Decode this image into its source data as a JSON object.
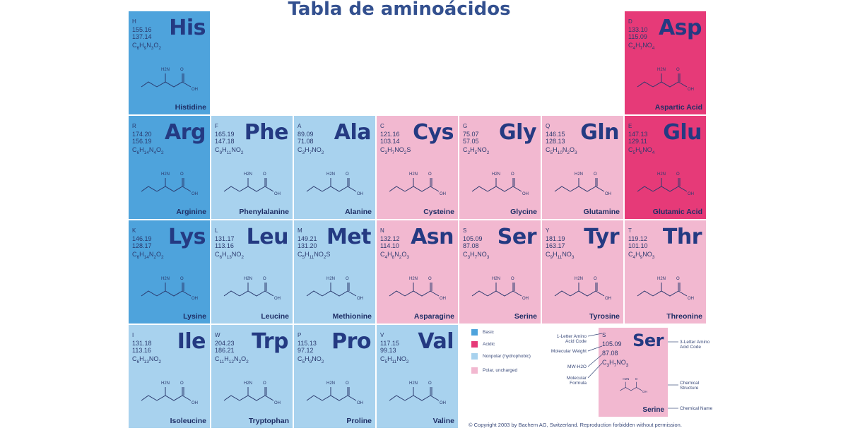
{
  "title": "Tabla de aminoácidos",
  "colors": {
    "basic": "#4ea3dc",
    "acidic": "#e63a78",
    "nonpolar": "#a8d2ee",
    "polar": "#f2b8d0"
  },
  "amino_acids": [
    {
      "code": "H",
      "mw1": "155.16",
      "mw2": "137.14",
      "formula": "C6H9N3O2",
      "symbol": "His",
      "name": "Histidine",
      "class": "basic",
      "col": 0,
      "row": 0
    },
    {
      "code": "D",
      "mw1": "133.10",
      "mw2": "115.09",
      "formula": "C4H7NO4",
      "symbol": "Asp",
      "name": "Aspartic Acid",
      "class": "acidic",
      "col": 6,
      "row": 0
    },
    {
      "code": "R",
      "mw1": "174.20",
      "mw2": "156.19",
      "formula": "C6H14N4O2",
      "symbol": "Arg",
      "name": "Arginine",
      "class": "basic",
      "col": 0,
      "row": 1
    },
    {
      "code": "F",
      "mw1": "165.19",
      "mw2": "147.18",
      "formula": "C9H11NO2",
      "symbol": "Phe",
      "name": "Phenylalanine",
      "class": "nonpolar",
      "col": 1,
      "row": 1
    },
    {
      "code": "A",
      "mw1": "89.09",
      "mw2": "71.08",
      "formula": "C3H7NO2",
      "symbol": "Ala",
      "name": "Alanine",
      "class": "nonpolar",
      "col": 2,
      "row": 1
    },
    {
      "code": "C",
      "mw1": "121.16",
      "mw2": "103.14",
      "formula": "C3H7NO2S",
      "symbol": "Cys",
      "name": "Cysteine",
      "class": "polar",
      "col": 3,
      "row": 1
    },
    {
      "code": "G",
      "mw1": "75.07",
      "mw2": "57.05",
      "formula": "C2H5NO2",
      "symbol": "Gly",
      "name": "Glycine",
      "class": "polar",
      "col": 4,
      "row": 1
    },
    {
      "code": "Q",
      "mw1": "146.15",
      "mw2": "128.13",
      "formula": "C5H10N2O3",
      "symbol": "Gln",
      "name": "Glutamine",
      "class": "polar",
      "col": 5,
      "row": 1
    },
    {
      "code": "E",
      "mw1": "147.13",
      "mw2": "129.11",
      "formula": "C5H9NO4",
      "symbol": "Glu",
      "name": "Glutamic Acid",
      "class": "acidic",
      "col": 6,
      "row": 1
    },
    {
      "code": "K",
      "mw1": "146.19",
      "mw2": "128.17",
      "formula": "C6H14N2O2",
      "symbol": "Lys",
      "name": "Lysine",
      "class": "basic",
      "col": 0,
      "row": 2
    },
    {
      "code": "L",
      "mw1": "131.17",
      "mw2": "113.16",
      "formula": "C6H13NO2",
      "symbol": "Leu",
      "name": "Leucine",
      "class": "nonpolar",
      "col": 1,
      "row": 2
    },
    {
      "code": "M",
      "mw1": "149.21",
      "mw2": "131.20",
      "formula": "C5H11NO2S",
      "symbol": "Met",
      "name": "Methionine",
      "class": "nonpolar",
      "col": 2,
      "row": 2
    },
    {
      "code": "N",
      "mw1": "132.12",
      "mw2": "114.10",
      "formula": "C4H8N2O3",
      "symbol": "Asn",
      "name": "Asparagine",
      "class": "polar",
      "col": 3,
      "row": 2
    },
    {
      "code": "S",
      "mw1": "105.09",
      "mw2": "87.08",
      "formula": "C3H7NO3",
      "symbol": "Ser",
      "name": "Serine",
      "class": "polar",
      "col": 4,
      "row": 2
    },
    {
      "code": "Y",
      "mw1": "181.19",
      "mw2": "163.17",
      "formula": "C9H11NO3",
      "symbol": "Tyr",
      "name": "Tyrosine",
      "class": "polar",
      "col": 5,
      "row": 2
    },
    {
      "code": "T",
      "mw1": "119.12",
      "mw2": "101.10",
      "formula": "C4H9NO3",
      "symbol": "Thr",
      "name": "Threonine",
      "class": "polar",
      "col": 6,
      "row": 2
    },
    {
      "code": "I",
      "mw1": "131.18",
      "mw2": "113.16",
      "formula": "C6H13NO2",
      "symbol": "Ile",
      "name": "Isoleucine",
      "class": "nonpolar",
      "col": 0,
      "row": 3
    },
    {
      "code": "W",
      "mw1": "204.23",
      "mw2": "186.21",
      "formula": "C11H12N2O2",
      "symbol": "Trp",
      "name": "Tryptophan",
      "class": "nonpolar",
      "col": 1,
      "row": 3
    },
    {
      "code": "P",
      "mw1": "115.13",
      "mw2": "97.12",
      "formula": "C5H9NO2",
      "symbol": "Pro",
      "name": "Proline",
      "class": "nonpolar",
      "col": 2,
      "row": 3
    },
    {
      "code": "V",
      "mw1": "117.15",
      "mw2": "99.13",
      "formula": "C5H11NO2",
      "symbol": "Val",
      "name": "Valine",
      "class": "nonpolar",
      "col": 3,
      "row": 3
    }
  ],
  "legend": [
    {
      "label": "Basic",
      "class": "basic"
    },
    {
      "label": "Acidic",
      "class": "acidic"
    },
    {
      "label": "Nonpolar (hydrophobic)",
      "class": "nonpolar"
    },
    {
      "label": "Polar, uncharged",
      "class": "polar"
    }
  ],
  "key": {
    "code": "S",
    "mw1": "105.09",
    "mw2": "87.08",
    "formula": "C3H7NO3",
    "symbol": "Ser",
    "name": "Serine",
    "labels": {
      "one_letter": "1-Letter Amino Acid Code",
      "mol_weight": "Molecular Weight",
      "mw_h2o": "MW-H2O",
      "mol_formula": "Molecular Formula",
      "three_letter": "3-Letter Amino Acid Code",
      "chem_structure": "Chemical Structure",
      "chem_name": "Chemical Name"
    }
  },
  "copyright": "© Copyright 2003 by Bachem AG, Switzerland. Reproduction forbidden without permission.",
  "atom_labels": {
    "amine": "H2N",
    "hydroxyl": "OH",
    "carbonyl": "O"
  }
}
